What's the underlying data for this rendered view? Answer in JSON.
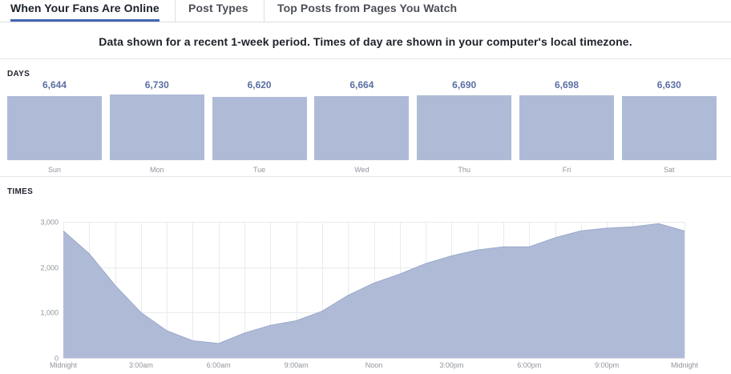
{
  "tabs": [
    {
      "label": "When Your Fans Are Online",
      "active": true
    },
    {
      "label": "Post Types",
      "active": false
    },
    {
      "label": "Top Posts from Pages You Watch",
      "active": false
    }
  ],
  "notice": "Data shown for a recent 1-week period. Times of day are shown in your computer's local timezone.",
  "colors": {
    "bar": "#afbbd6",
    "area": "#afbbd6",
    "area_line": "#9aa8cb",
    "accent": "#4267b2",
    "value_text": "#5b6fa3"
  },
  "chart_data": [
    {
      "type": "bar",
      "label": "DAYS",
      "categories": [
        "Sun",
        "Mon",
        "Tue",
        "Wed",
        "Thu",
        "Fri",
        "Sat"
      ],
      "values": [
        6644,
        6730,
        6620,
        6664,
        6690,
        6698,
        6630
      ],
      "value_labels": [
        "6,644",
        "6,730",
        "6,620",
        "6,664",
        "6,690",
        "6,698",
        "6,630"
      ]
    },
    {
      "type": "area",
      "label": "TIMES",
      "x": [
        0,
        1,
        2,
        3,
        4,
        5,
        6,
        7,
        8,
        9,
        10,
        11,
        12,
        13,
        14,
        15,
        16,
        17,
        18,
        19,
        20,
        21,
        22,
        23,
        24
      ],
      "values": [
        2800,
        2300,
        1600,
        1000,
        600,
        380,
        320,
        550,
        720,
        820,
        1030,
        1380,
        1650,
        1850,
        2080,
        2250,
        2380,
        2450,
        2450,
        2650,
        2800,
        2860,
        2890,
        2960,
        2800
      ],
      "ylim": [
        0,
        3000
      ],
      "yticks": [
        0,
        1000,
        2000,
        3000
      ],
      "ytick_labels": [
        "0",
        "1,000",
        "2,000",
        "3,000"
      ],
      "xtick_labels": [
        "Midnight",
        "3:00am",
        "6:00am",
        "9:00am",
        "Noon",
        "3:00pm",
        "6:00pm",
        "9:00pm",
        "Midnight"
      ],
      "grid": true
    }
  ]
}
